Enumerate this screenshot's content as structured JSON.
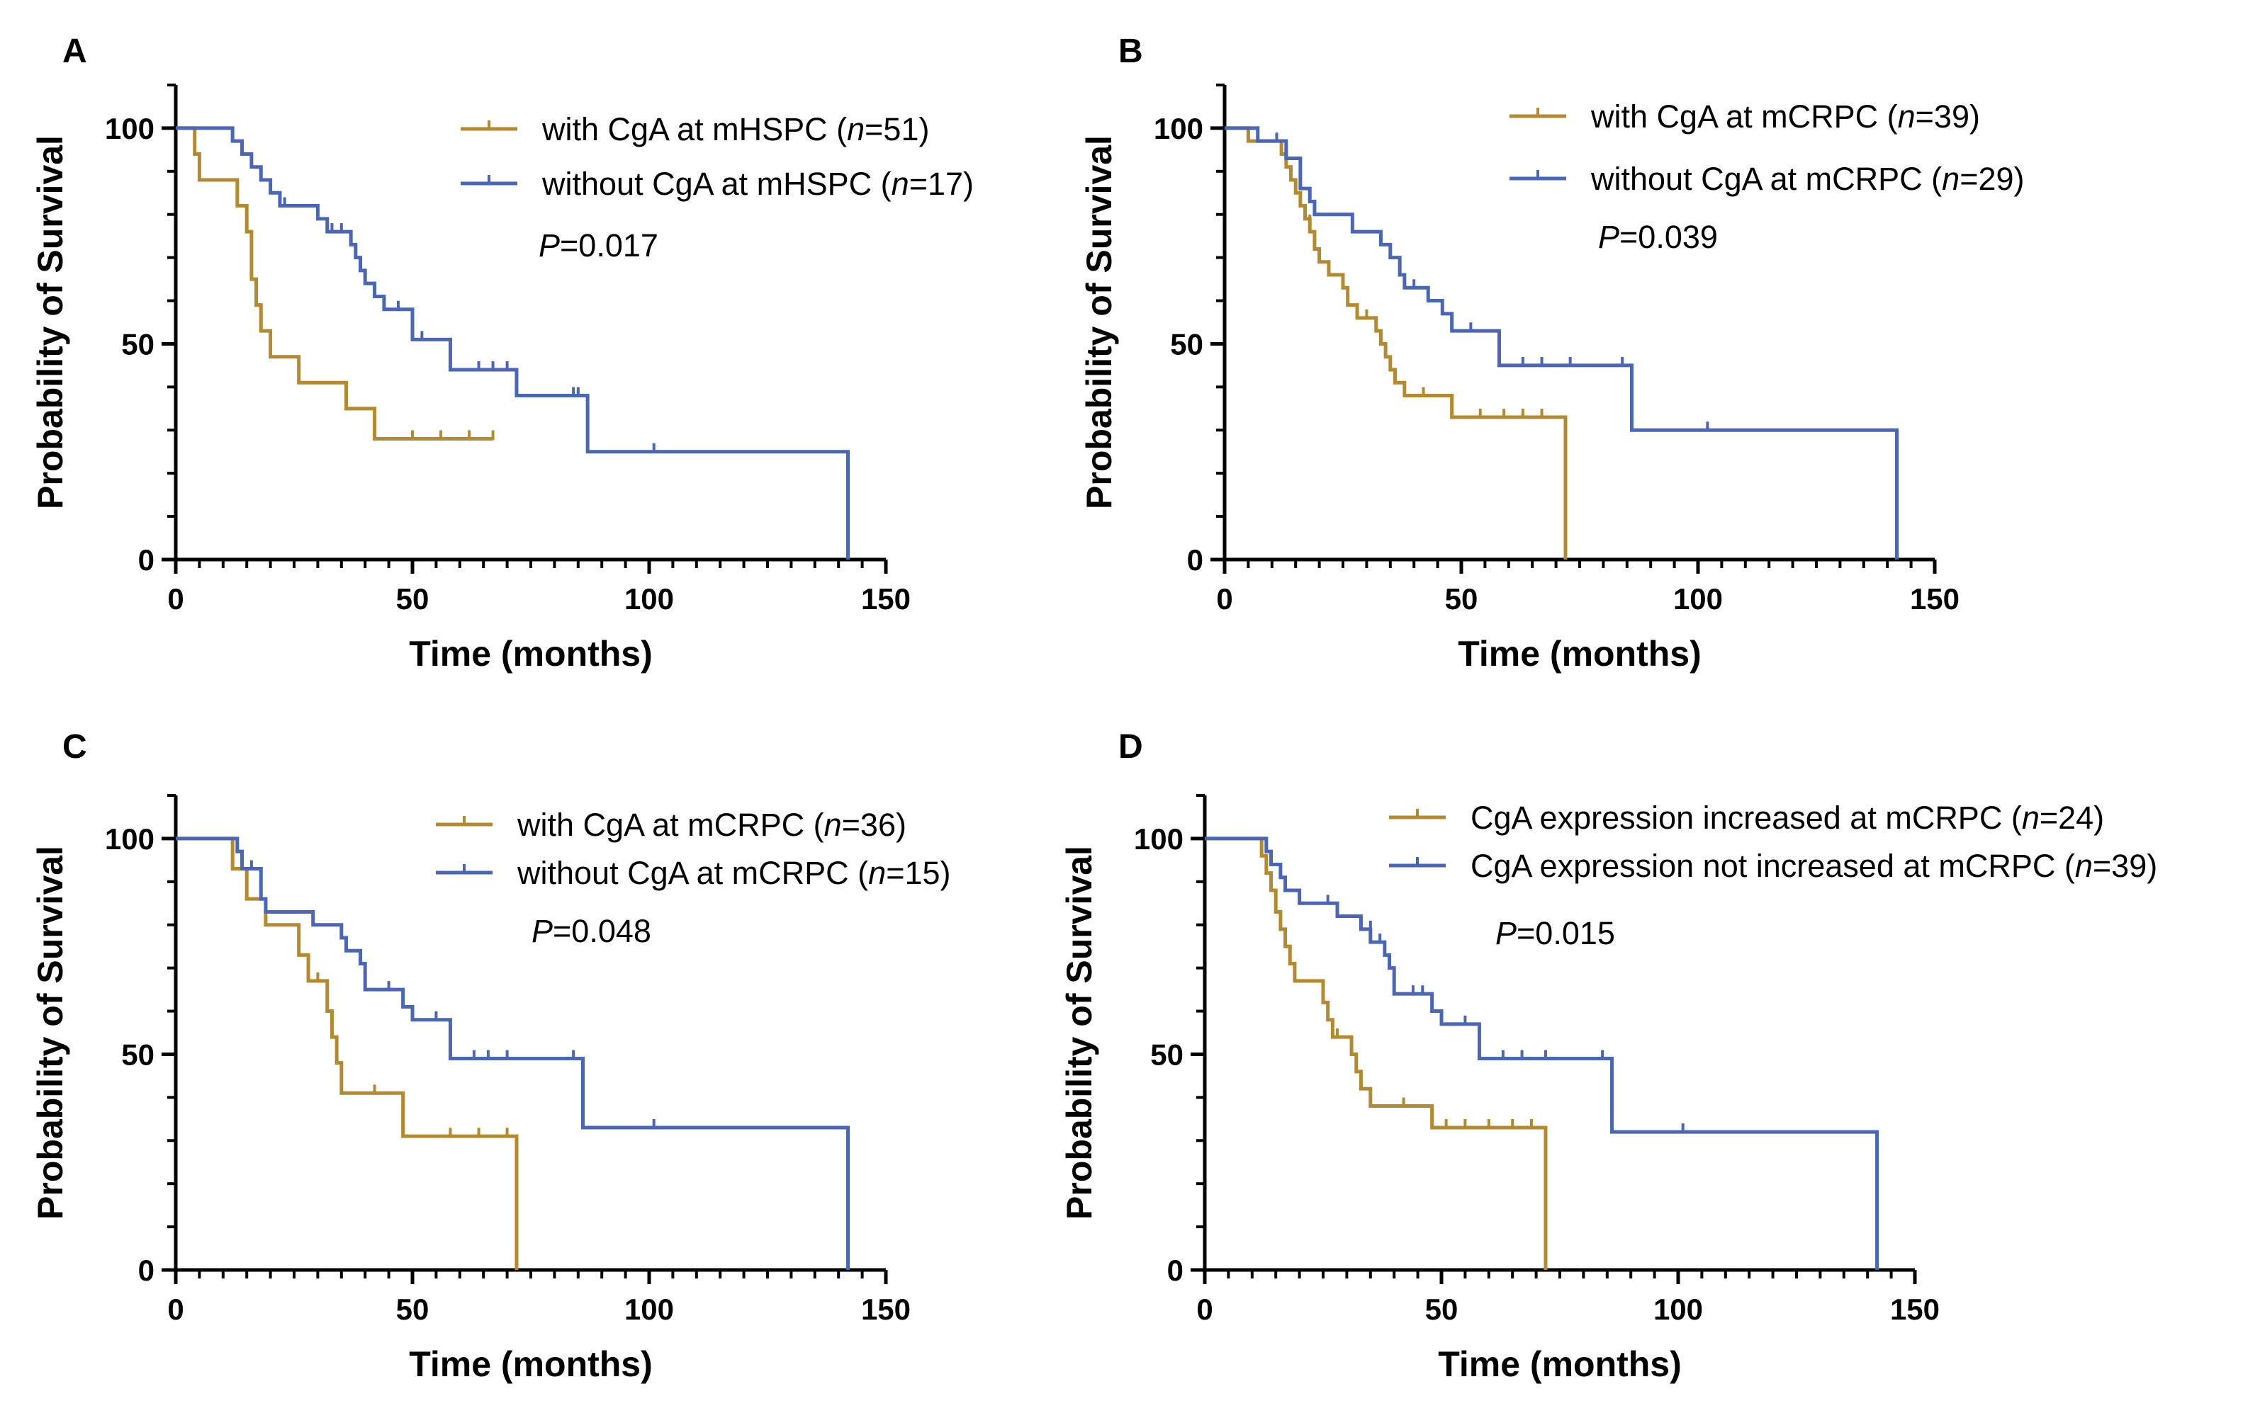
{
  "chart_data": [
    {
      "type": "line",
      "subtype": "kaplan-meier",
      "panel": "A",
      "xlabel": "Time (months)",
      "ylabel": "Probability of Survival",
      "xlim": [
        0,
        150
      ],
      "ylim": [
        0,
        110
      ],
      "xticks": [
        "0",
        "50",
        "100",
        "150"
      ],
      "yticks": [
        "0",
        "50",
        "100"
      ],
      "legend_position": "top-right",
      "p_label": "P",
      "p_value": "=0.017",
      "series": [
        {
          "name_prefix": "with CgA at mHSPC (",
          "n_label": "n",
          "n_value": "=51)",
          "color": "#B58A2E",
          "steps": [
            [
              0,
              100
            ],
            [
              4,
              94
            ],
            [
              5,
              88
            ],
            [
              13,
              82
            ],
            [
              15,
              76
            ],
            [
              16,
              65
            ],
            [
              17,
              59
            ],
            [
              18,
              53
            ],
            [
              20,
              47
            ],
            [
              26,
              41
            ],
            [
              36,
              35
            ],
            [
              42,
              28
            ],
            [
              67,
              28
            ]
          ],
          "censored": [
            [
              50,
              28
            ],
            [
              56,
              28
            ],
            [
              62,
              28
            ],
            [
              67,
              28
            ]
          ]
        },
        {
          "name_prefix": "without CgA at mHSPC (",
          "n_label": "n",
          "n_value": "=17)",
          "color": "#4A66B8",
          "steps": [
            [
              0,
              100
            ],
            [
              12,
              97
            ],
            [
              14,
              94
            ],
            [
              16,
              91
            ],
            [
              18,
              88
            ],
            [
              20,
              85
            ],
            [
              22,
              82
            ],
            [
              30,
              79
            ],
            [
              32,
              76
            ],
            [
              37,
              73
            ],
            [
              38,
              70
            ],
            [
              39,
              67
            ],
            [
              40,
              64
            ],
            [
              42,
              61
            ],
            [
              44,
              58
            ],
            [
              50,
              51
            ],
            [
              58,
              44
            ],
            [
              72,
              38
            ],
            [
              87,
              25
            ],
            [
              142,
              25
            ],
            [
              142,
              0
            ]
          ],
          "censored": [
            [
              23,
              82
            ],
            [
              33,
              76
            ],
            [
              35,
              76
            ],
            [
              47,
              58
            ],
            [
              52,
              51
            ],
            [
              64,
              44
            ],
            [
              67,
              44
            ],
            [
              70,
              44
            ],
            [
              84,
              38
            ],
            [
              85,
              38
            ],
            [
              101,
              25
            ]
          ]
        }
      ]
    },
    {
      "type": "line",
      "subtype": "kaplan-meier",
      "panel": "B",
      "xlabel": "Time (months)",
      "ylabel": "Probability of Survival",
      "xlim": [
        0,
        150
      ],
      "ylim": [
        0,
        110
      ],
      "xticks": [
        "0",
        "50",
        "100",
        "150"
      ],
      "yticks": [
        "0",
        "50",
        "100"
      ],
      "legend_position": "top-right",
      "p_label": "P",
      "p_value": "=0.039",
      "series": [
        {
          "name_prefix": "with CgA at mCRPC (",
          "n_label": "n",
          "n_value": "=39)",
          "color": "#B58A2E",
          "steps": [
            [
              0,
              100
            ],
            [
              5,
              97
            ],
            [
              12,
              94
            ],
            [
              13,
              91
            ],
            [
              14,
              88
            ],
            [
              15,
              85
            ],
            [
              16,
              82
            ],
            [
              17,
              79
            ],
            [
              18,
              76
            ],
            [
              19,
              72
            ],
            [
              20,
              69
            ],
            [
              22,
              66
            ],
            [
              25,
              63
            ],
            [
              26,
              59
            ],
            [
              28,
              56
            ],
            [
              32,
              53
            ],
            [
              33,
              50
            ],
            [
              34,
              47
            ],
            [
              35,
              44
            ],
            [
              36,
              41
            ],
            [
              38,
              38
            ],
            [
              48,
              33
            ],
            [
              72,
              33
            ],
            [
              72,
              0
            ]
          ],
          "censored": [
            [
              18,
              78
            ],
            [
              30,
              56
            ],
            [
              42,
              38
            ],
            [
              54,
              33
            ],
            [
              59,
              33
            ],
            [
              63,
              33
            ],
            [
              67,
              33
            ]
          ]
        },
        {
          "name_prefix": "without CgA at mCRPC (",
          "n_label": "n",
          "n_value": "=29)",
          "color": "#4A66B8",
          "steps": [
            [
              0,
              100
            ],
            [
              7,
              97
            ],
            [
              13,
              93
            ],
            [
              16,
              86
            ],
            [
              18,
              83
            ],
            [
              19,
              80
            ],
            [
              27,
              76
            ],
            [
              33,
              73
            ],
            [
              35,
              70
            ],
            [
              37,
              66
            ],
            [
              38,
              63
            ],
            [
              43,
              60
            ],
            [
              46,
              57
            ],
            [
              48,
              53
            ],
            [
              58,
              45
            ],
            [
              86,
              30
            ],
            [
              142,
              30
            ],
            [
              142,
              0
            ]
          ],
          "censored": [
            [
              11,
              97
            ],
            [
              40,
              63
            ],
            [
              52,
              53
            ],
            [
              63,
              45
            ],
            [
              67,
              45
            ],
            [
              73,
              45
            ],
            [
              84,
              45
            ],
            [
              102,
              30
            ]
          ]
        }
      ]
    },
    {
      "type": "line",
      "subtype": "kaplan-meier",
      "panel": "C",
      "xlabel": "Time (months)",
      "ylabel": "Probability of Survival",
      "xlim": [
        0,
        150
      ],
      "ylim": [
        0,
        110
      ],
      "xticks": [
        "0",
        "50",
        "100",
        "150"
      ],
      "yticks": [
        "0",
        "50",
        "100"
      ],
      "legend_position": "top-right",
      "p_label": "P",
      "p_value": "=0.048",
      "series": [
        {
          "name_prefix": "with CgA at mCRPC (",
          "n_label": "n",
          "n_value": "=36)",
          "color": "#B58A2E",
          "steps": [
            [
              0,
              100
            ],
            [
              12,
              93
            ],
            [
              15,
              86
            ],
            [
              19,
              80
            ],
            [
              26,
              73
            ],
            [
              28,
              67
            ],
            [
              32,
              60
            ],
            [
              33,
              54
            ],
            [
              34,
              48
            ],
            [
              35,
              41
            ],
            [
              41,
              41
            ],
            [
              48,
              31
            ],
            [
              72,
              31
            ],
            [
              72,
              0
            ]
          ],
          "censored": [
            [
              30,
              67
            ],
            [
              42,
              41
            ],
            [
              58,
              31
            ],
            [
              64,
              31
            ],
            [
              70,
              31
            ]
          ]
        },
        {
          "name_prefix": "without CgA at mCRPC (",
          "n_label": "n",
          "n_value": "=15)",
          "color": "#4A66B8",
          "steps": [
            [
              0,
              100
            ],
            [
              13,
              97
            ],
            [
              14,
              93
            ],
            [
              18,
              86
            ],
            [
              19,
              83
            ],
            [
              29,
              80
            ],
            [
              35,
              77
            ],
            [
              36,
              74
            ],
            [
              39,
              71
            ],
            [
              40,
              65
            ],
            [
              48,
              61
            ],
            [
              50,
              58
            ],
            [
              58,
              49
            ],
            [
              86,
              33
            ],
            [
              142,
              33
            ],
            [
              142,
              0
            ]
          ],
          "censored": [
            [
              16,
              93
            ],
            [
              45,
              65
            ],
            [
              55,
              58
            ],
            [
              63,
              49
            ],
            [
              66,
              49
            ],
            [
              70,
              49
            ],
            [
              84,
              49
            ],
            [
              101,
              33
            ]
          ]
        }
      ]
    },
    {
      "type": "line",
      "subtype": "kaplan-meier",
      "panel": "D",
      "xlabel": "Time (months)",
      "ylabel": "Probability of Survival",
      "xlim": [
        0,
        150
      ],
      "ylim": [
        0,
        110
      ],
      "xticks": [
        "0",
        "50",
        "100",
        "150"
      ],
      "yticks": [
        "0",
        "50",
        "100"
      ],
      "legend_position": "top-right",
      "p_label": "P",
      "p_value": "=0.015",
      "series": [
        {
          "name_prefix": "CgA expression increased at mCRPC (",
          "n_label": "n",
          "n_value": "=24)",
          "color": "#B58A2E",
          "steps": [
            [
              0,
              100
            ],
            [
              12,
              96
            ],
            [
              13,
              92
            ],
            [
              14,
              88
            ],
            [
              15,
              83
            ],
            [
              16,
              79
            ],
            [
              17,
              75
            ],
            [
              18,
              71
            ],
            [
              19,
              67
            ],
            [
              25,
              62
            ],
            [
              26,
              58
            ],
            [
              27,
              54
            ],
            [
              31,
              50
            ],
            [
              32,
              46
            ],
            [
              33,
              42
            ],
            [
              35,
              38
            ],
            [
              48,
              33
            ],
            [
              72,
              33
            ],
            [
              72,
              0
            ]
          ],
          "censored": [
            [
              28,
              54
            ],
            [
              42,
              38
            ],
            [
              51,
              33
            ],
            [
              55,
              33
            ],
            [
              60,
              33
            ],
            [
              65,
              33
            ],
            [
              69,
              33
            ]
          ]
        },
        {
          "name_prefix": "CgA expression not increased at mCRPC (",
          "n_label": "n",
          "n_value": "=39)",
          "color": "#4A66B8",
          "steps": [
            [
              0,
              100
            ],
            [
              13,
              97
            ],
            [
              14,
              94
            ],
            [
              16,
              91
            ],
            [
              17,
              88
            ],
            [
              20,
              85
            ],
            [
              28,
              82
            ],
            [
              33,
              79
            ],
            [
              35,
              76
            ],
            [
              38,
              73
            ],
            [
              39,
              70
            ],
            [
              40,
              64
            ],
            [
              48,
              60
            ],
            [
              50,
              57
            ],
            [
              58,
              49
            ],
            [
              86,
              32
            ],
            [
              142,
              32
            ],
            [
              142,
              0
            ]
          ],
          "censored": [
            [
              26,
              85
            ],
            [
              35,
              79
            ],
            [
              37,
              76
            ],
            [
              44,
              64
            ],
            [
              46,
              64
            ],
            [
              55,
              57
            ],
            [
              63,
              49
            ],
            [
              67,
              49
            ],
            [
              72,
              49
            ],
            [
              84,
              49
            ],
            [
              101,
              32
            ]
          ]
        }
      ]
    }
  ],
  "colors": {
    "with_cga": "#B58A2E",
    "without_cga": "#4A66B8",
    "axis": "#000000"
  }
}
